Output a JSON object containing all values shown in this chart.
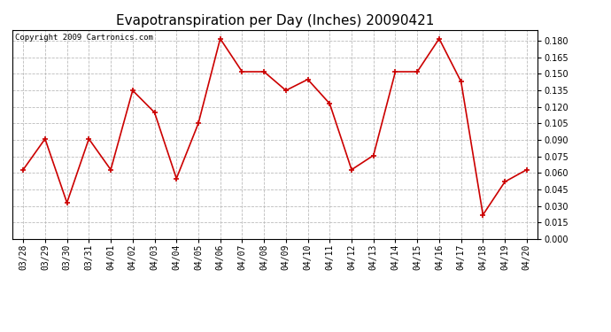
{
  "title": "Evapotranspiration per Day (Inches) 20090421",
  "copyright_text": "Copyright 2009 Cartronics.com",
  "x_labels": [
    "03/28",
    "03/29",
    "03/30",
    "03/31",
    "04/01",
    "04/02",
    "04/03",
    "04/04",
    "04/05",
    "04/06",
    "04/07",
    "04/08",
    "04/09",
    "04/10",
    "04/11",
    "04/12",
    "04/13",
    "04/14",
    "04/15",
    "04/16",
    "04/17",
    "04/18",
    "04/19",
    "04/20"
  ],
  "y_values": [
    0.063,
    0.091,
    0.033,
    0.091,
    0.063,
    0.135,
    0.115,
    0.055,
    0.105,
    0.182,
    0.152,
    0.152,
    0.135,
    0.145,
    0.123,
    0.063,
    0.076,
    0.152,
    0.152,
    0.182,
    0.143,
    0.022,
    0.052,
    0.063
  ],
  "line_color": "#cc0000",
  "marker": "+",
  "marker_size": 5,
  "marker_linewidth": 1.2,
  "bg_color": "#ffffff",
  "grid_color": "#bbbbbb",
  "ylim": [
    0.0,
    0.19
  ],
  "yticks": [
    0.0,
    0.015,
    0.03,
    0.045,
    0.06,
    0.075,
    0.09,
    0.105,
    0.12,
    0.135,
    0.15,
    0.165,
    0.18
  ],
  "title_fontsize": 11,
  "tick_fontsize": 7,
  "copyright_fontsize": 6.5,
  "linewidth": 1.2
}
